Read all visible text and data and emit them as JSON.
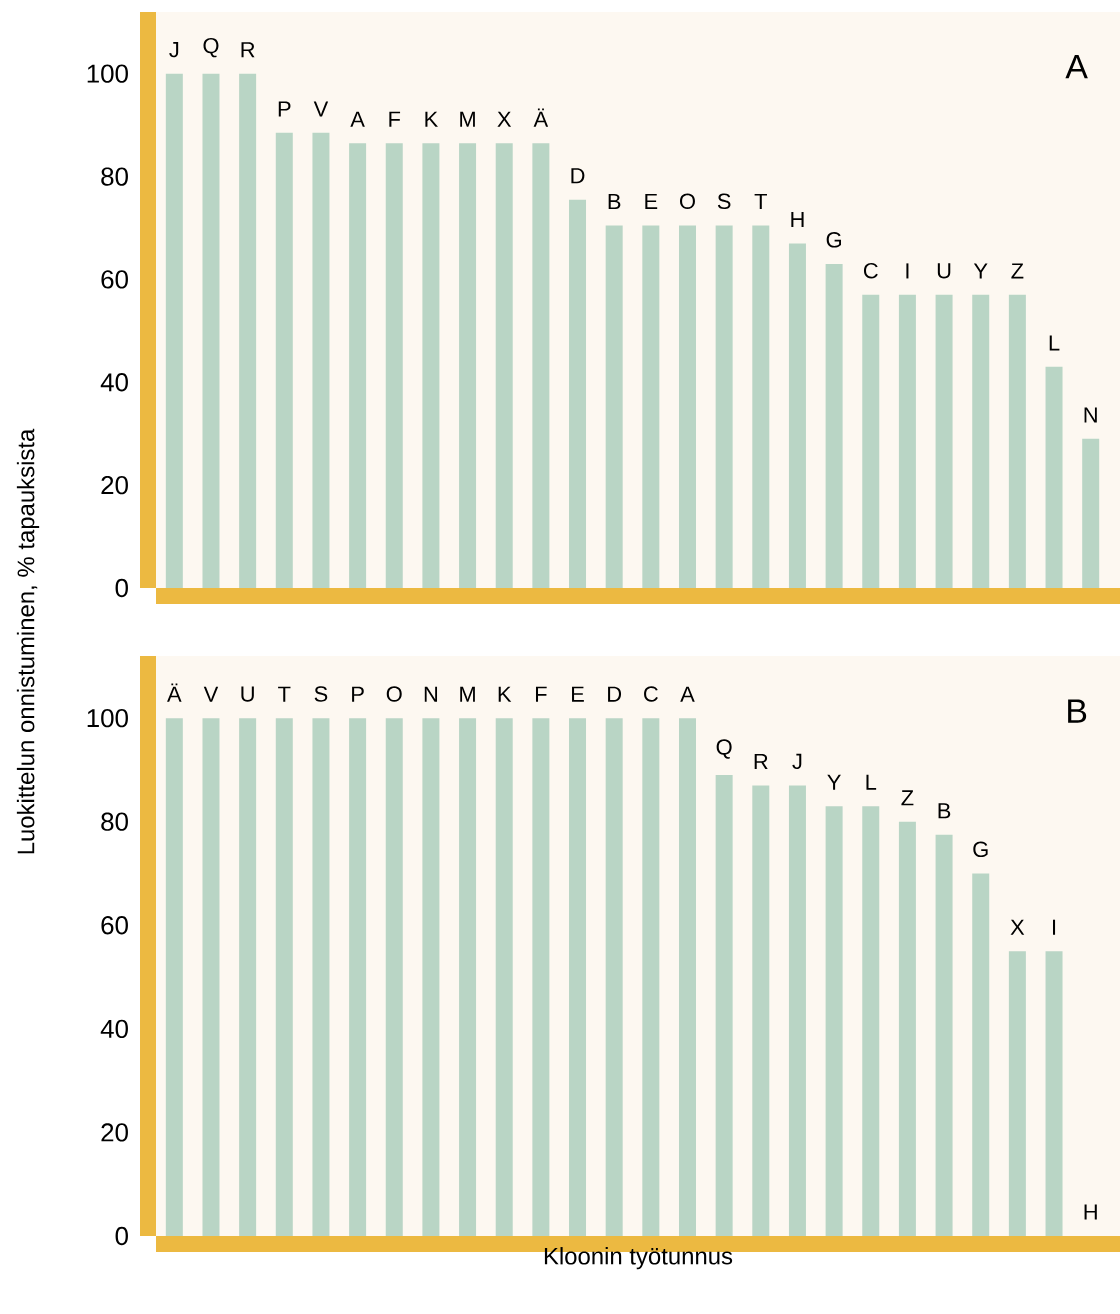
{
  "chart_data": [
    {
      "type": "bar",
      "title": "A",
      "ylabel": "Luokittelun onnistuminen, % tapauksista",
      "categories": [
        "J",
        "Q",
        "R",
        "P",
        "V",
        "A",
        "F",
        "K",
        "M",
        "X",
        "Ä",
        "D",
        "B",
        "E",
        "O",
        "S",
        "T",
        "H",
        "G",
        "C",
        "I",
        "U",
        "Y",
        "Z",
        "L",
        "N"
      ],
      "values": [
        100,
        100,
        100,
        88.5,
        88.5,
        86.5,
        86.5,
        86.5,
        86.5,
        86.5,
        86.5,
        75.5,
        70.5,
        70.5,
        70.5,
        70.5,
        70.5,
        67,
        63,
        57,
        57,
        57,
        57,
        57,
        43,
        29
      ],
      "color": "#b9d5c5",
      "ylim": [
        0,
        112
      ],
      "yticks": [
        0,
        20,
        40,
        60,
        80,
        100
      ]
    },
    {
      "type": "bar",
      "title": "B",
      "xlabel": "Kloonin työtunnus",
      "categories": [
        "Ä",
        "V",
        "U",
        "T",
        "S",
        "P",
        "O",
        "N",
        "M",
        "K",
        "F",
        "E",
        "D",
        "C",
        "A",
        "Q",
        "R",
        "J",
        "Y",
        "L",
        "Z",
        "B",
        "G",
        "X",
        "I",
        "H"
      ],
      "values": [
        100,
        100,
        100,
        100,
        100,
        100,
        100,
        100,
        100,
        100,
        100,
        100,
        100,
        100,
        100,
        89,
        87,
        87,
        83,
        83,
        80,
        77.5,
        70,
        55,
        55,
        0
      ],
      "color": "#b9d5c5",
      "ylim": [
        0,
        112
      ],
      "yticks": [
        0,
        20,
        40,
        60,
        80,
        100
      ]
    }
  ]
}
